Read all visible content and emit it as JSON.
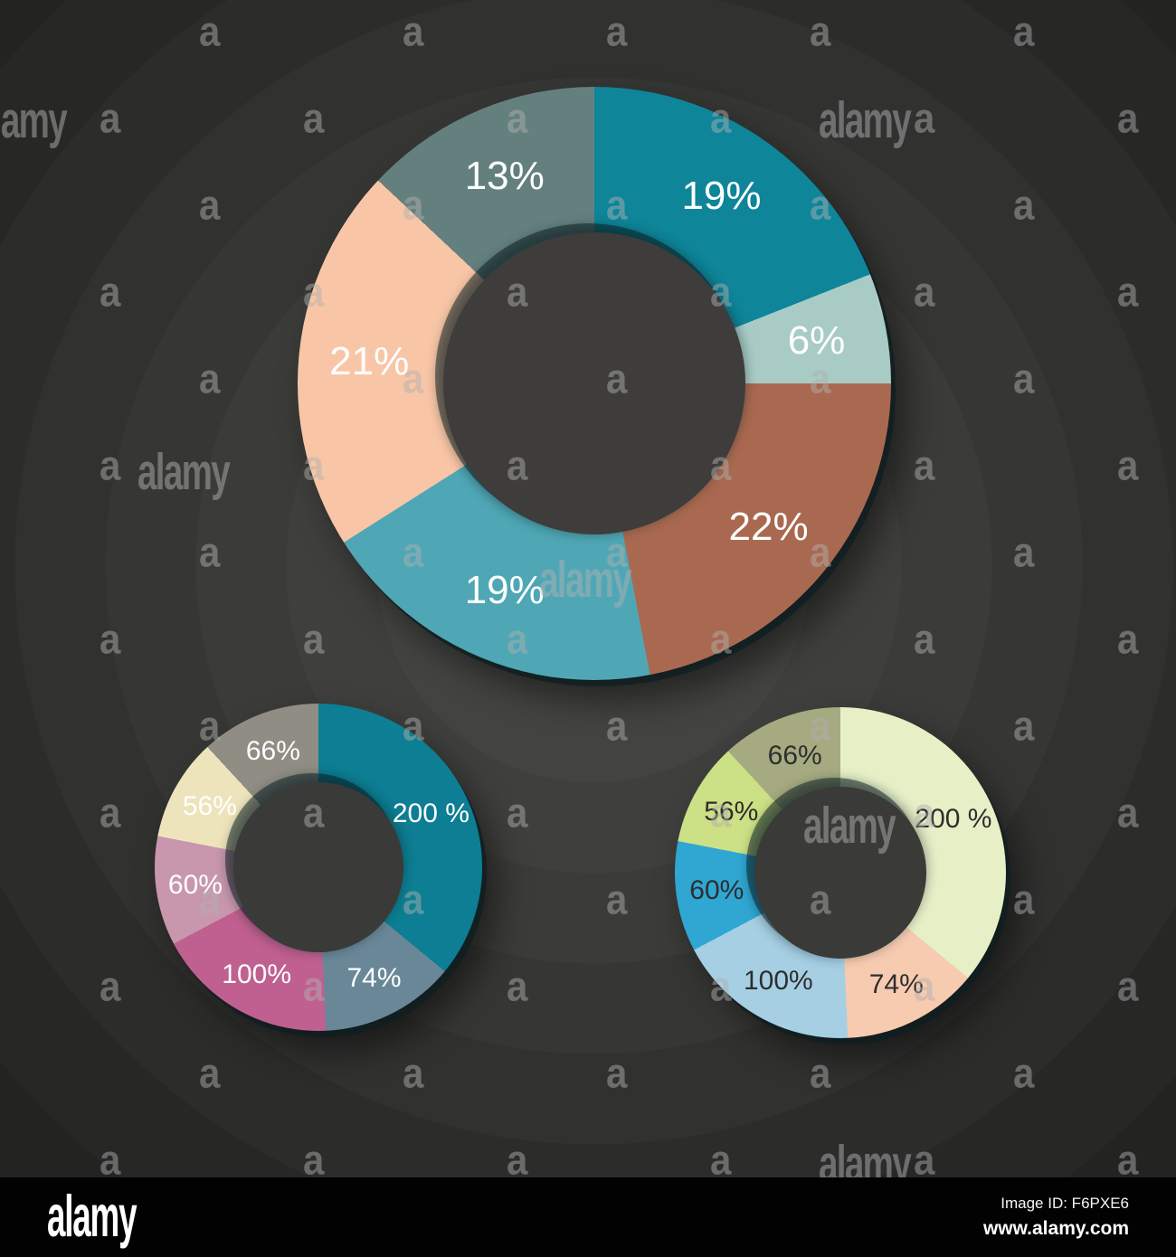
{
  "watermark": {
    "word": "alamy",
    "letter": "a"
  },
  "footer": {
    "logo_text": "alamy",
    "image_id": "Image ID: F6PXE6",
    "website": "www.alamy.com"
  },
  "chart_data": [
    {
      "id": "donut-large",
      "type": "pie",
      "subtype": "donut",
      "values": [
        19,
        6,
        22,
        19,
        21,
        13
      ],
      "labels": [
        "19%",
        "6%",
        "22%",
        "19%",
        "21%",
        "13%"
      ],
      "colors": [
        "#0e8599",
        "#a9cbc6",
        "#a96950",
        "#4fa7b5",
        "#f8c6a6",
        "#64807e"
      ],
      "label_color": "#ffffff",
      "start_angle_deg": 0,
      "direction": "clockwise",
      "legend": "none",
      "title": ""
    },
    {
      "id": "donut-small-left",
      "type": "pie",
      "subtype": "donut",
      "values": [
        200,
        74,
        100,
        60,
        56,
        66
      ],
      "labels": [
        "200 %",
        "74%",
        "100%",
        "60%",
        "56%",
        "66%"
      ],
      "colors": [
        "#0d7e93",
        "#6a8798",
        "#c06090",
        "#c897ad",
        "#eee4bc",
        "#8f8d84"
      ],
      "label_color": "#ffffff",
      "start_angle_deg": 0,
      "direction": "clockwise",
      "legend": "none",
      "title": ""
    },
    {
      "id": "donut-small-right",
      "type": "pie",
      "subtype": "donut",
      "values": [
        200,
        74,
        100,
        60,
        56,
        66
      ],
      "labels": [
        "200 %",
        "74%",
        "100%",
        "60%",
        "56%",
        "66%"
      ],
      "colors": [
        "#e7efc7",
        "#f7cbb0",
        "#a6cfe4",
        "#2fa7d2",
        "#cce085",
        "#a5aa80"
      ],
      "label_color": "#2e2e2e",
      "start_angle_deg": 0,
      "direction": "clockwise",
      "legend": "none",
      "title": ""
    }
  ]
}
